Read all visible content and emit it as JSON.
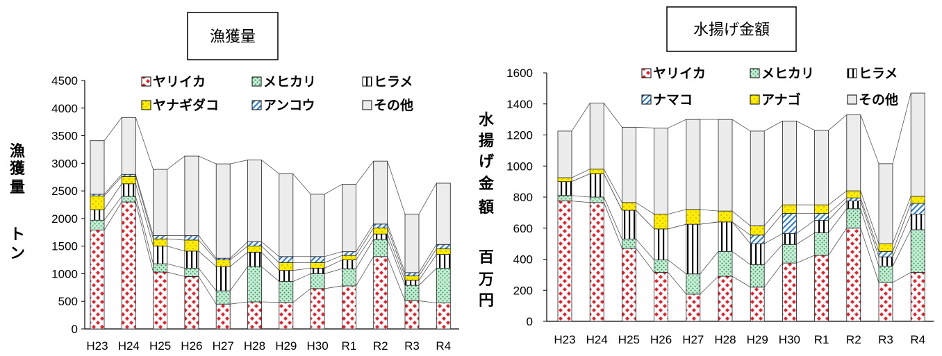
{
  "chart_data": [
    {
      "type": "bar",
      "stacked": true,
      "title": "漁獲量",
      "ylabel": "漁獲量　トン",
      "ylim": [
        0,
        4500
      ],
      "yticks": [
        "0",
        "500",
        "1000",
        "1500",
        "2000",
        "2500",
        "3000",
        "3500",
        "4000",
        "4500"
      ],
      "categories": [
        "H23",
        "H24",
        "H25",
        "H26",
        "H27",
        "H28",
        "H29",
        "H30",
        "R1",
        "R2",
        "R3",
        "R4"
      ],
      "legend_labels": [
        "ヤリイカ",
        "メヒカリ",
        "ヒラメ",
        "ヤナギダコ",
        "アンコウ",
        "その他"
      ],
      "series": [
        {
          "name": "ヤリイカ",
          "fill": "diamond",
          "values": [
            1790,
            2300,
            1030,
            950,
            450,
            490,
            480,
            730,
            780,
            1310,
            510,
            470
          ]
        },
        {
          "name": "メヒカリ",
          "fill": "dots",
          "values": [
            180,
            100,
            150,
            150,
            240,
            640,
            380,
            270,
            310,
            310,
            280,
            630
          ]
        },
        {
          "name": "ヒラメ",
          "fill": "vlines",
          "values": [
            190,
            230,
            320,
            310,
            440,
            260,
            200,
            100,
            160,
            100,
            90,
            250
          ]
        },
        {
          "name": "ヤナギダコ",
          "fill": "yellow",
          "values": [
            250,
            130,
            130,
            200,
            120,
            110,
            140,
            100,
            80,
            110,
            80,
            100
          ]
        },
        {
          "name": "アンコウ",
          "fill": "diag",
          "values": [
            30,
            40,
            60,
            80,
            30,
            80,
            110,
            110,
            70,
            70,
            60,
            80
          ]
        },
        {
          "name": "その他",
          "fill": "plain",
          "values": [
            970,
            1030,
            1200,
            1440,
            1710,
            1480,
            1500,
            1130,
            1220,
            1140,
            1060,
            1110
          ]
        }
      ]
    },
    {
      "type": "bar",
      "stacked": true,
      "title": "水揚げ金額",
      "ylabel": "水揚げ金額　百万円",
      "ylim": [
        0,
        1600
      ],
      "yticks": [
        "0",
        "200",
        "400",
        "600",
        "800",
        "1000",
        "1200",
        "1400",
        "1600"
      ],
      "categories": [
        "H23",
        "H24",
        "H25",
        "H26",
        "H27",
        "H28",
        "H29",
        "H30",
        "R1",
        "R2",
        "R3",
        "R4"
      ],
      "legend_labels": [
        "ヤリイカ",
        "メヒカリ",
        "ヒラメ",
        "ナマコ",
        "アナゴ",
        "その他"
      ],
      "series": [
        {
          "name": "ヤリイカ",
          "fill": "diamond",
          "values": [
            775,
            765,
            470,
            315,
            175,
            290,
            220,
            375,
            425,
            600,
            250,
            315
          ]
        },
        {
          "name": "メヒカリ",
          "fill": "dots",
          "values": [
            35,
            35,
            60,
            80,
            130,
            160,
            145,
            120,
            145,
            125,
            105,
            275
          ]
        },
        {
          "name": "ヒラメ",
          "fill": "vlines",
          "values": [
            90,
            150,
            185,
            200,
            320,
            190,
            135,
            70,
            80,
            50,
            60,
            100
          ]
        },
        {
          "name": "ナマコ",
          "fill": "diag",
          "values": [
            0,
            0,
            0,
            0,
            0,
            0,
            55,
            130,
            45,
            20,
            35,
            70
          ]
        },
        {
          "name": "アナゴ",
          "fill": "yellow",
          "values": [
            25,
            30,
            50,
            95,
            95,
            70,
            60,
            55,
            55,
            45,
            50,
            45
          ]
        },
        {
          "name": "その他",
          "fill": "plain",
          "values": [
            300,
            425,
            485,
            555,
            580,
            590,
            610,
            540,
            480,
            490,
            515,
            665
          ]
        }
      ]
    }
  ]
}
